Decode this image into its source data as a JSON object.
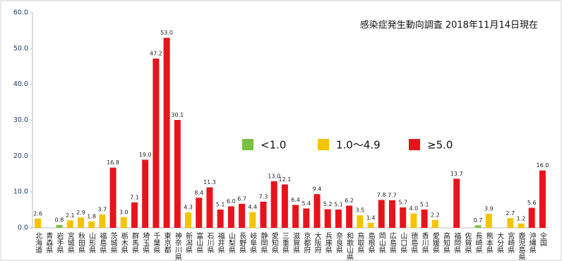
{
  "chart_data": {
    "type": "bar",
    "title": "感染症発生動向調査 2018年11月14日現在",
    "categories": [
      "北海道",
      "青森県",
      "岩手県",
      "宮城県",
      "秋田県",
      "山形県",
      "福島県",
      "茨城県",
      "栃木県",
      "群馬県",
      "埼玉県",
      "千葉県",
      "東京都",
      "神奈川県",
      "新潟県",
      "富山県",
      "石川県",
      "福井県",
      "山梨県",
      "長野県",
      "岐阜県",
      "静岡県",
      "愛知県",
      "三重県",
      "滋賀県",
      "京都府",
      "大阪府",
      "兵庫県",
      "奈良県",
      "和歌山県",
      "鳥取県",
      "島根県",
      "岡山県",
      "広島県",
      "山口県",
      "徳島県",
      "香川県",
      "愛媛県",
      "高知県",
      "福岡県",
      "佐賀県",
      "長崎県",
      "熊本県",
      "大分県",
      "宮崎県",
      "鹿児島県",
      "沖縄県",
      "全国"
    ],
    "values": [
      2.6,
      null,
      0.8,
      2.1,
      2.9,
      1.8,
      3.7,
      16.8,
      3.0,
      7.1,
      19.0,
      47.2,
      53.0,
      30.1,
      4.3,
      8.4,
      11.3,
      5.1,
      6.0,
      6.7,
      4.4,
      7.3,
      13.0,
      12.1,
      6.4,
      5.4,
      9.4,
      5.2,
      5.1,
      6.2,
      3.5,
      1.4,
      7.8,
      7.7,
      5.7,
      4.0,
      5.1,
      2.2,
      null,
      13.7,
      null,
      0.7,
      3.9,
      null,
      2.7,
      1.2,
      5.6,
      16.0
    ],
    "value_labels": [
      "2.6",
      null,
      "0.8",
      "2.1",
      "2.9",
      "1.8",
      "3.7",
      "16.8",
      "3.0",
      "7.1",
      "19.0",
      "47.2",
      "53.0",
      "30.1",
      "4.3",
      "8.4",
      "11.3",
      "5.1",
      "6.0",
      "6.7",
      "4.4",
      "7.3",
      "13.0",
      "12.1",
      "6.4",
      "5.4",
      "9.4",
      "5.2",
      "5.1",
      "6.2",
      "3.5",
      "1.4",
      "7.8",
      "7.7",
      "5.7",
      "4.0",
      "5.1",
      "2.2",
      null,
      "13.7",
      null,
      "0.7",
      "3.9",
      null,
      "2.7",
      "1.2",
      "5.6",
      "16.0"
    ],
    "colors": [
      "#f5c400",
      "#f5c400",
      "#7ac143",
      "#f5c400",
      "#f5c400",
      "#f5c400",
      "#f5c400",
      "#e8141c",
      "#f5c400",
      "#e8141c",
      "#e8141c",
      "#e8141c",
      "#e8141c",
      "#e8141c",
      "#f5c400",
      "#e8141c",
      "#e8141c",
      "#e8141c",
      "#e8141c",
      "#e8141c",
      "#f5c400",
      "#e8141c",
      "#e8141c",
      "#e8141c",
      "#e8141c",
      "#e8141c",
      "#e8141c",
      "#e8141c",
      "#e8141c",
      "#e8141c",
      "#f5c400",
      "#f5c400",
      "#e8141c",
      "#e8141c",
      "#e8141c",
      "#f5c400",
      "#e8141c",
      "#f5c400",
      "#f5c400",
      "#e8141c",
      "#f5c400",
      "#7ac143",
      "#f5c400",
      "#f5c400",
      "#f5c400",
      "#f5c400",
      "#e8141c",
      "#e8141c"
    ],
    "legend": [
      {
        "label": "<1.0",
        "color": "#7ac143"
      },
      {
        "label": "1.0～4.9",
        "color": "#f5c400"
      },
      {
        "label": "≥5.0",
        "color": "#e8141c"
      }
    ],
    "ylim": [
      0,
      60
    ],
    "yticks": [
      {
        "value": 0,
        "label": "0.0"
      },
      {
        "value": 10,
        "label": "10.0"
      },
      {
        "value": 20,
        "label": "20.0"
      },
      {
        "value": 30,
        "label": "30.0"
      },
      {
        "value": 40,
        "label": "40.0"
      },
      {
        "value": 50,
        "label": "50.0"
      },
      {
        "value": 60,
        "label": "60.0"
      }
    ]
  }
}
